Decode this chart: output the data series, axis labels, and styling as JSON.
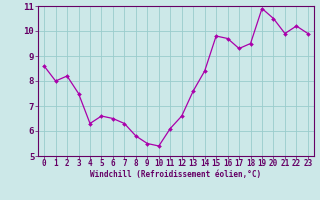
{
  "x": [
    0,
    1,
    2,
    3,
    4,
    5,
    6,
    7,
    8,
    9,
    10,
    11,
    12,
    13,
    14,
    15,
    16,
    17,
    18,
    19,
    20,
    21,
    22,
    23
  ],
  "y": [
    8.6,
    8.0,
    8.2,
    7.5,
    6.3,
    6.6,
    6.5,
    6.3,
    5.8,
    5.5,
    5.4,
    6.1,
    6.6,
    7.6,
    8.4,
    9.8,
    9.7,
    9.3,
    9.5,
    10.9,
    10.5,
    9.9,
    10.2,
    9.9
  ],
  "xlabel": "Windchill (Refroidissement éolien,°C)",
  "ylim": [
    5,
    11
  ],
  "xlim": [
    -0.5,
    23.5
  ],
  "yticks": [
    5,
    6,
    7,
    8,
    9,
    10,
    11
  ],
  "xticks": [
    0,
    1,
    2,
    3,
    4,
    5,
    6,
    7,
    8,
    9,
    10,
    11,
    12,
    13,
    14,
    15,
    16,
    17,
    18,
    19,
    20,
    21,
    22,
    23
  ],
  "line_color": "#aa00aa",
  "marker_color": "#aa00aa",
  "bg_color": "#cce8e8",
  "grid_color": "#99cccc",
  "axis_color": "#660066",
  "text_color": "#660066",
  "xlabel_fontsize": 5.5,
  "tick_fontsize": 5.5,
  "ytick_fontsize": 6.5
}
